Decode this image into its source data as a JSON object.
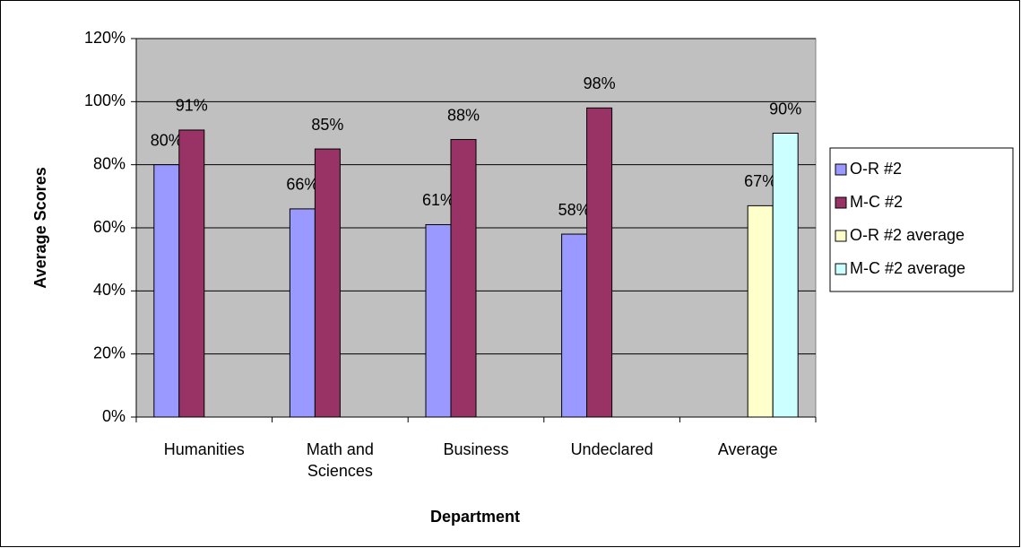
{
  "chart_data": {
    "type": "bar",
    "categories": [
      "Humanities",
      "Math and Sciences",
      "Business",
      "Undeclared",
      "Average"
    ],
    "series": [
      {
        "name": "O-R #2",
        "color": "#9999ff",
        "values": [
          80,
          66,
          61,
          58,
          null
        ],
        "value_labels": [
          "80%",
          "66%",
          "61%",
          "58%",
          null
        ]
      },
      {
        "name": "M-C #2",
        "color": "#993366",
        "values": [
          91,
          85,
          88,
          98,
          null
        ],
        "value_labels": [
          "91%",
          "85%",
          "88%",
          "98%",
          null
        ]
      },
      {
        "name": "O-R #2 average",
        "color": "#ffffcc",
        "values": [
          null,
          null,
          null,
          null,
          67
        ],
        "value_labels": [
          null,
          null,
          null,
          null,
          "67%"
        ]
      },
      {
        "name": "M-C #2 average",
        "color": "#ccffff",
        "values": [
          null,
          null,
          null,
          null,
          90
        ],
        "value_labels": [
          null,
          null,
          null,
          null,
          "90%"
        ]
      }
    ],
    "xlabel": "Department",
    "ylabel": "Average Scores",
    "ylim": [
      0,
      120
    ],
    "yticks": [
      {
        "value": 0,
        "label": "0%"
      },
      {
        "value": 20,
        "label": "20%"
      },
      {
        "value": 40,
        "label": "40%"
      },
      {
        "value": 60,
        "label": "60%"
      },
      {
        "value": 80,
        "label": "80%"
      },
      {
        "value": 100,
        "label": "100%"
      },
      {
        "value": 120,
        "label": "120%"
      }
    ],
    "grid": true,
    "legend": "right",
    "plot_background": "#c0c0c0"
  }
}
